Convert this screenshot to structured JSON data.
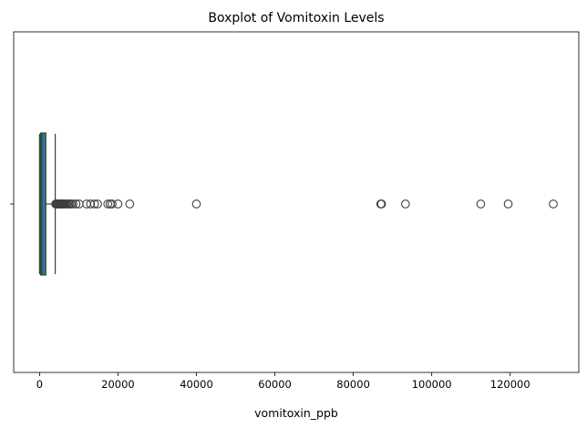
{
  "chart_data": {
    "type": "boxplot",
    "orientation": "horizontal",
    "title": "Boxplot of Vomitoxin Levels",
    "xlabel": "vomitoxin_ppb",
    "ylabel": "",
    "xlim": [
      -6600,
      137500
    ],
    "xticks": [
      0,
      20000,
      40000,
      60000,
      80000,
      100000,
      120000
    ],
    "xtick_labels": [
      "0",
      "20000",
      "40000",
      "60000",
      "80000",
      "100000",
      "120000"
    ],
    "grid": false,
    "legend": "none",
    "colors": {
      "box_fill": "#3274a1",
      "line": "#2f4a2f",
      "flier_edge": "#3d3d3d"
    },
    "series": [
      {
        "whisker_low": 0,
        "q1": 250,
        "median": 550,
        "q3": 1600,
        "whisker_high": 4000,
        "outliers": [
          4100,
          4300,
          4500,
          4700,
          4900,
          5100,
          5300,
          5500,
          5700,
          5900,
          6100,
          6300,
          6600,
          6900,
          7200,
          7600,
          8000,
          8500,
          9300,
          10100,
          12000,
          13000,
          14000,
          14800,
          17400,
          18000,
          18500,
          20000,
          23000,
          40000,
          87000,
          87200,
          93300,
          112500,
          119500,
          131000
        ]
      }
    ]
  }
}
